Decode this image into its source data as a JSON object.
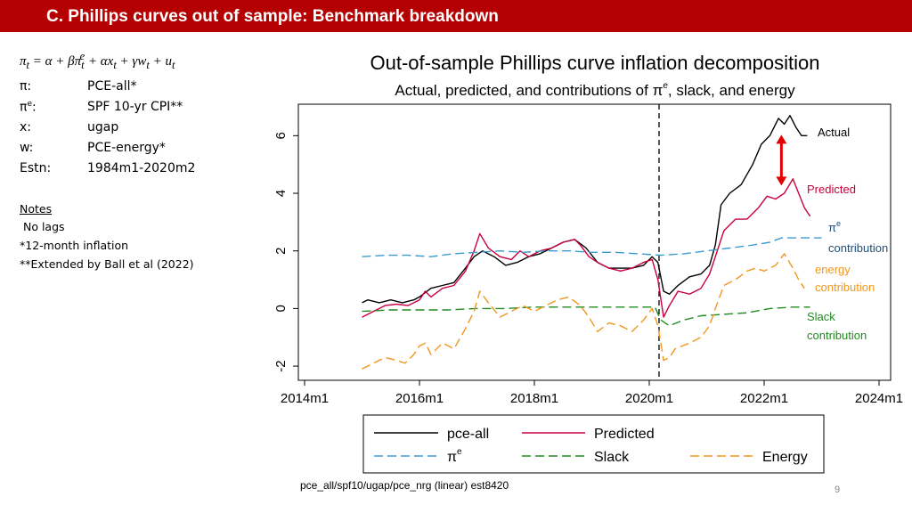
{
  "header": {
    "title": "C. Phillips curves out of sample: Benchmark breakdown"
  },
  "equation": {
    "lhs": "π",
    "rhs": "= α + βπ",
    "rest1": " + αx",
    "rest2": " + γw",
    "rest3": " + u",
    "sub_t": "t",
    "sup_e": "e"
  },
  "definitions": [
    {
      "sym": "π:",
      "sup": "",
      "sym2": "",
      "val": "PCE-all*"
    },
    {
      "sym": "π",
      "sup": "e",
      "sym2": ":",
      "val": "SPF 10-yr CPI**"
    },
    {
      "sym": "x:",
      "sup": "",
      "sym2": "",
      "val": "ugap"
    },
    {
      "sym": "w:",
      "sup": "",
      "sym2": "",
      "val": "PCE-energy*"
    },
    {
      "sym": "Estn:",
      "sup": "",
      "sym2": "",
      "val": "1984m1-2020m2"
    }
  ],
  "notes": {
    "heading": "Notes",
    "lines": [
      " No lags",
      "*12-month inflation",
      "**Extended by Ball et al (2022)"
    ]
  },
  "chart_data": {
    "type": "line",
    "title": "Out-of-sample Phillips curve inflation decomposition",
    "subtitle_pre": "Actual, predicted, and contributions of π",
    "subtitle_sup": "e",
    "subtitle_post": ", slack, and energy",
    "xlabel": "",
    "ylabel": "",
    "xlim": [
      2014.0,
      2024.0
    ],
    "ylim": [
      -2.4,
      7.0
    ],
    "x_ticks": [
      {
        "value": 2014,
        "label": "2014m1"
      },
      {
        "value": 2016,
        "label": "2016m1"
      },
      {
        "value": 2018,
        "label": "2018m1"
      },
      {
        "value": 2020,
        "label": "2020m1"
      },
      {
        "value": 2022,
        "label": "2022m1"
      },
      {
        "value": 2024,
        "label": "2024m1"
      }
    ],
    "y_ticks": [
      {
        "value": -2,
        "label": "-2"
      },
      {
        "value": 0,
        "label": "0"
      },
      {
        "value": 2,
        "label": "2"
      },
      {
        "value": 4,
        "label": "4"
      },
      {
        "value": 6,
        "label": "6"
      }
    ],
    "vline_x": 2020.17,
    "series": [
      {
        "name": "pce-all",
        "color": "#000000",
        "dash": "",
        "width": 1.4,
        "points": [
          [
            2015.0,
            0.2
          ],
          [
            2015.1,
            0.3
          ],
          [
            2015.3,
            0.2
          ],
          [
            2015.5,
            0.3
          ],
          [
            2015.7,
            0.2
          ],
          [
            2015.9,
            0.3
          ],
          [
            2016.0,
            0.4
          ],
          [
            2016.2,
            0.7
          ],
          [
            2016.4,
            0.8
          ],
          [
            2016.6,
            0.9
          ],
          [
            2016.8,
            1.4
          ],
          [
            2016.95,
            1.8
          ],
          [
            2017.1,
            2.0
          ],
          [
            2017.3,
            1.8
          ],
          [
            2017.5,
            1.5
          ],
          [
            2017.7,
            1.6
          ],
          [
            2017.9,
            1.8
          ],
          [
            2018.1,
            1.9
          ],
          [
            2018.3,
            2.1
          ],
          [
            2018.5,
            2.3
          ],
          [
            2018.7,
            2.4
          ],
          [
            2018.9,
            2.1
          ],
          [
            2019.1,
            1.6
          ],
          [
            2019.3,
            1.4
          ],
          [
            2019.5,
            1.4
          ],
          [
            2019.7,
            1.4
          ],
          [
            2019.9,
            1.5
          ],
          [
            2020.05,
            1.8
          ],
          [
            2020.15,
            1.6
          ],
          [
            2020.25,
            0.6
          ],
          [
            2020.35,
            0.5
          ],
          [
            2020.5,
            0.8
          ],
          [
            2020.7,
            1.1
          ],
          [
            2020.9,
            1.2
          ],
          [
            2021.05,
            1.5
          ],
          [
            2021.15,
            2.2
          ],
          [
            2021.25,
            3.6
          ],
          [
            2021.4,
            4.0
          ],
          [
            2021.6,
            4.3
          ],
          [
            2021.8,
            5.0
          ],
          [
            2021.95,
            5.7
          ],
          [
            2022.1,
            6.0
          ],
          [
            2022.25,
            6.6
          ],
          [
            2022.35,
            6.4
          ],
          [
            2022.45,
            6.7
          ],
          [
            2022.55,
            6.3
          ],
          [
            2022.65,
            6.0
          ],
          [
            2022.75,
            6.0
          ]
        ]
      },
      {
        "name": "Predicted",
        "color": "#c8003c",
        "dash": "",
        "width": 1.4,
        "points": [
          [
            2015.0,
            -0.3
          ],
          [
            2015.2,
            -0.1
          ],
          [
            2015.4,
            0.1
          ],
          [
            2015.6,
            0.15
          ],
          [
            2015.8,
            0.1
          ],
          [
            2016.0,
            0.3
          ],
          [
            2016.1,
            0.6
          ],
          [
            2016.2,
            0.4
          ],
          [
            2016.4,
            0.7
          ],
          [
            2016.6,
            0.8
          ],
          [
            2016.8,
            1.3
          ],
          [
            2016.95,
            2.0
          ],
          [
            2017.05,
            2.6
          ],
          [
            2017.2,
            2.1
          ],
          [
            2017.4,
            1.8
          ],
          [
            2017.6,
            1.7
          ],
          [
            2017.75,
            2.0
          ],
          [
            2017.9,
            1.8
          ],
          [
            2018.1,
            2.0
          ],
          [
            2018.3,
            2.1
          ],
          [
            2018.5,
            2.3
          ],
          [
            2018.7,
            2.4
          ],
          [
            2018.8,
            2.2
          ],
          [
            2018.95,
            1.8
          ],
          [
            2019.1,
            1.6
          ],
          [
            2019.3,
            1.4
          ],
          [
            2019.5,
            1.3
          ],
          [
            2019.7,
            1.4
          ],
          [
            2019.9,
            1.6
          ],
          [
            2020.05,
            1.7
          ],
          [
            2020.15,
            1.0
          ],
          [
            2020.25,
            -0.3
          ],
          [
            2020.35,
            0.1
          ],
          [
            2020.5,
            0.6
          ],
          [
            2020.7,
            0.5
          ],
          [
            2020.9,
            0.7
          ],
          [
            2021.05,
            1.2
          ],
          [
            2021.15,
            1.8
          ],
          [
            2021.3,
            2.7
          ],
          [
            2021.5,
            3.1
          ],
          [
            2021.7,
            3.1
          ],
          [
            2021.9,
            3.5
          ],
          [
            2022.05,
            3.9
          ],
          [
            2022.2,
            3.8
          ],
          [
            2022.35,
            4.0
          ],
          [
            2022.5,
            4.5
          ],
          [
            2022.6,
            4.0
          ],
          [
            2022.7,
            3.5
          ],
          [
            2022.8,
            3.2
          ]
        ]
      },
      {
        "name": "π^e contribution",
        "color": "#3b9bd1",
        "dash": "10,5",
        "width": 1.4,
        "points": [
          [
            2015.0,
            1.8
          ],
          [
            2015.4,
            1.85
          ],
          [
            2015.8,
            1.85
          ],
          [
            2016.2,
            1.8
          ],
          [
            2016.6,
            1.9
          ],
          [
            2017.0,
            1.95
          ],
          [
            2017.4,
            2.0
          ],
          [
            2017.8,
            1.95
          ],
          [
            2018.2,
            2.0
          ],
          [
            2018.6,
            2.0
          ],
          [
            2019.0,
            1.95
          ],
          [
            2019.4,
            1.95
          ],
          [
            2019.8,
            1.9
          ],
          [
            2020.2,
            1.85
          ],
          [
            2020.6,
            1.9
          ],
          [
            2021.0,
            2.0
          ],
          [
            2021.4,
            2.1
          ],
          [
            2021.8,
            2.2
          ],
          [
            2022.1,
            2.3
          ],
          [
            2022.3,
            2.45
          ],
          [
            2022.7,
            2.45
          ],
          [
            2023.0,
            2.45
          ]
        ]
      },
      {
        "name": "Slack contribution",
        "color": "#228b22",
        "dash": "10,5",
        "width": 1.4,
        "points": [
          [
            2015.0,
            -0.1
          ],
          [
            2015.5,
            -0.05
          ],
          [
            2016.0,
            -0.05
          ],
          [
            2016.5,
            -0.05
          ],
          [
            2017.0,
            0.0
          ],
          [
            2017.5,
            0.0
          ],
          [
            2018.0,
            0.05
          ],
          [
            2018.5,
            0.05
          ],
          [
            2019.0,
            0.05
          ],
          [
            2019.5,
            0.05
          ],
          [
            2020.1,
            0.05
          ],
          [
            2020.2,
            -0.4
          ],
          [
            2020.35,
            -0.6
          ],
          [
            2020.6,
            -0.4
          ],
          [
            2020.9,
            -0.25
          ],
          [
            2021.3,
            -0.2
          ],
          [
            2021.7,
            -0.15
          ],
          [
            2022.1,
            0.0
          ],
          [
            2022.5,
            0.05
          ],
          [
            2022.8,
            0.05
          ]
        ]
      },
      {
        "name": "Energy contribution",
        "color": "#f0961e",
        "dash": "10,5",
        "width": 1.4,
        "points": [
          [
            2015.0,
            -2.1
          ],
          [
            2015.2,
            -1.9
          ],
          [
            2015.4,
            -1.7
          ],
          [
            2015.6,
            -1.8
          ],
          [
            2015.75,
            -1.9
          ],
          [
            2015.9,
            -1.6
          ],
          [
            2016.0,
            -1.3
          ],
          [
            2016.1,
            -1.2
          ],
          [
            2016.2,
            -1.6
          ],
          [
            2016.4,
            -1.2
          ],
          [
            2016.6,
            -1.4
          ],
          [
            2016.8,
            -0.7
          ],
          [
            2016.95,
            -0.1
          ],
          [
            2017.05,
            0.6
          ],
          [
            2017.2,
            0.2
          ],
          [
            2017.4,
            -0.3
          ],
          [
            2017.6,
            -0.1
          ],
          [
            2017.8,
            0.1
          ],
          [
            2018.0,
            -0.1
          ],
          [
            2018.2,
            0.1
          ],
          [
            2018.4,
            0.3
          ],
          [
            2018.6,
            0.4
          ],
          [
            2018.8,
            0.1
          ],
          [
            2018.95,
            -0.3
          ],
          [
            2019.1,
            -0.8
          ],
          [
            2019.3,
            -0.5
          ],
          [
            2019.5,
            -0.6
          ],
          [
            2019.7,
            -0.8
          ],
          [
            2019.9,
            -0.4
          ],
          [
            2020.05,
            0.0
          ],
          [
            2020.15,
            -0.6
          ],
          [
            2020.25,
            -1.8
          ],
          [
            2020.35,
            -1.7
          ],
          [
            2020.45,
            -1.4
          ],
          [
            2020.7,
            -1.2
          ],
          [
            2020.9,
            -1.0
          ],
          [
            2021.05,
            -0.6
          ],
          [
            2021.15,
            0.0
          ],
          [
            2021.3,
            0.8
          ],
          [
            2021.5,
            1.0
          ],
          [
            2021.7,
            1.3
          ],
          [
            2021.85,
            1.4
          ],
          [
            2022.0,
            1.3
          ],
          [
            2022.2,
            1.5
          ],
          [
            2022.35,
            1.9
          ],
          [
            2022.5,
            1.4
          ],
          [
            2022.6,
            1.0
          ],
          [
            2022.7,
            0.7
          ]
        ]
      }
    ],
    "series_labels": [
      {
        "name": "Actual",
        "color": "#000000"
      },
      {
        "name": "Predicted",
        "color": "#c8003c"
      },
      {
        "name": "π",
        "sup": "e",
        "line2": "contribution",
        "color": "#1f4e79"
      },
      {
        "name": "energy",
        "line2": "contribution",
        "color": "#f0961e"
      },
      {
        "name": "Slack",
        "line2": "contribution",
        "color": "#228b22"
      }
    ],
    "arrow": {
      "x": 2022.3,
      "y_from": 6.0,
      "y_to": 4.3,
      "color": "#e00000"
    },
    "legend": [
      {
        "label": "pce-all",
        "sup": "",
        "color": "#000000",
        "dash": ""
      },
      {
        "label": "Predicted",
        "sup": "",
        "color": "#c8003c",
        "dash": ""
      },
      {
        "label": "π",
        "sup": "e",
        "color": "#3b9bd1",
        "dash": "10,5"
      },
      {
        "label": "Slack",
        "sup": "",
        "color": "#228b22",
        "dash": "10,5"
      },
      {
        "label": "Energy",
        "sup": "",
        "color": "#f0961e",
        "dash": "10,5"
      }
    ]
  },
  "footer": {
    "source": "pce_all/spf10/ugap/pce_nrg (linear) est8420",
    "page": "9"
  }
}
